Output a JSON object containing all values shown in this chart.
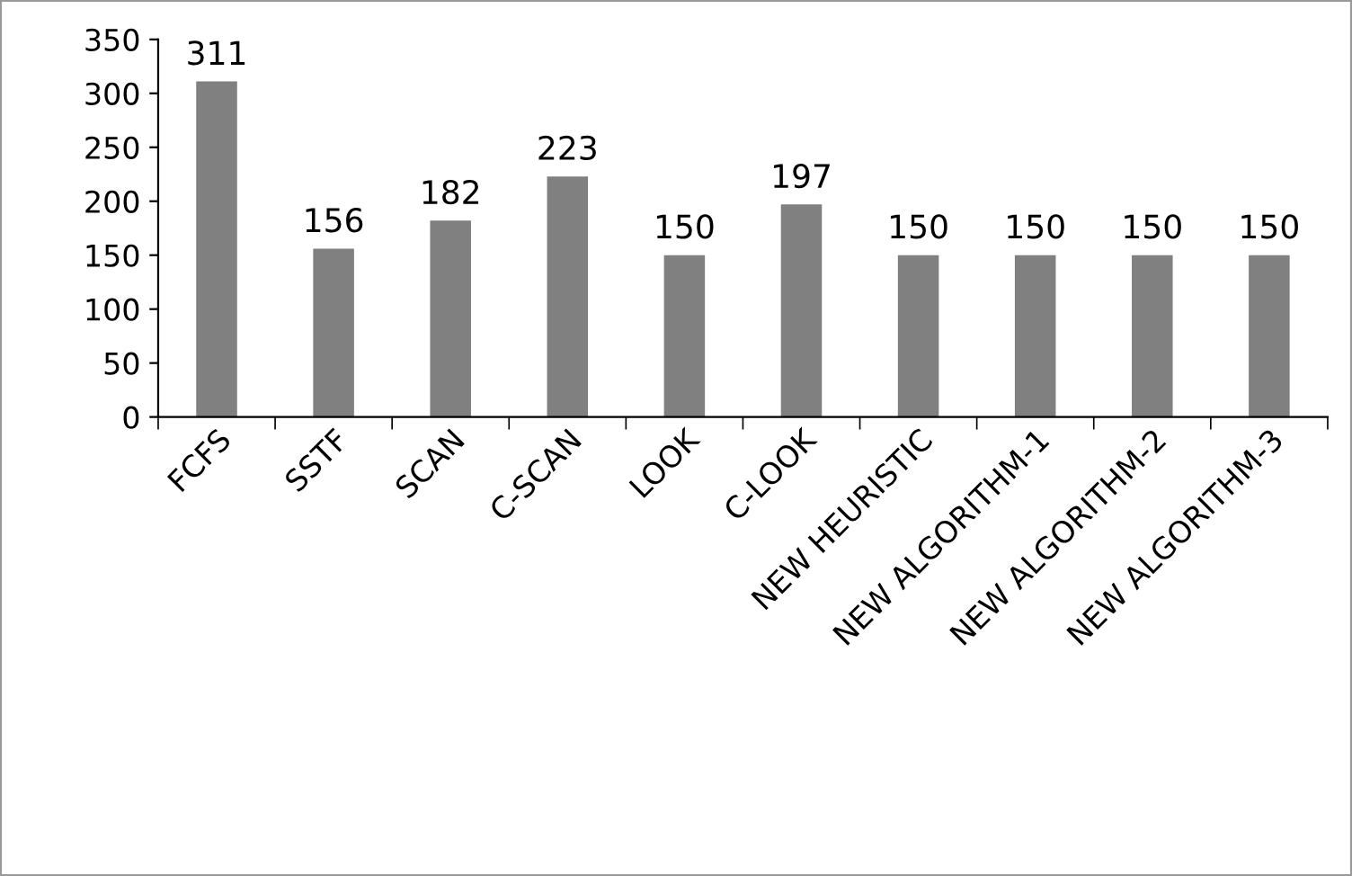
{
  "chart_data": {
    "type": "bar",
    "categories": [
      "FCFS",
      "SSTF",
      "SCAN",
      "C-SCAN",
      "LOOK",
      "C-LOOK",
      "NEW HEURISTIC",
      "NEW ALGORITHM-1",
      "NEW ALGORITHM-2",
      "NEW ALGORITHM-3"
    ],
    "values": [
      311,
      156,
      182,
      223,
      150,
      197,
      150,
      150,
      150,
      150
    ],
    "color": "#808080",
    "ylim": [
      0,
      350
    ],
    "yticks": [
      0,
      50,
      100,
      150,
      200,
      250,
      300,
      350
    ],
    "data_labels": true,
    "grid": false,
    "legend": false
  }
}
